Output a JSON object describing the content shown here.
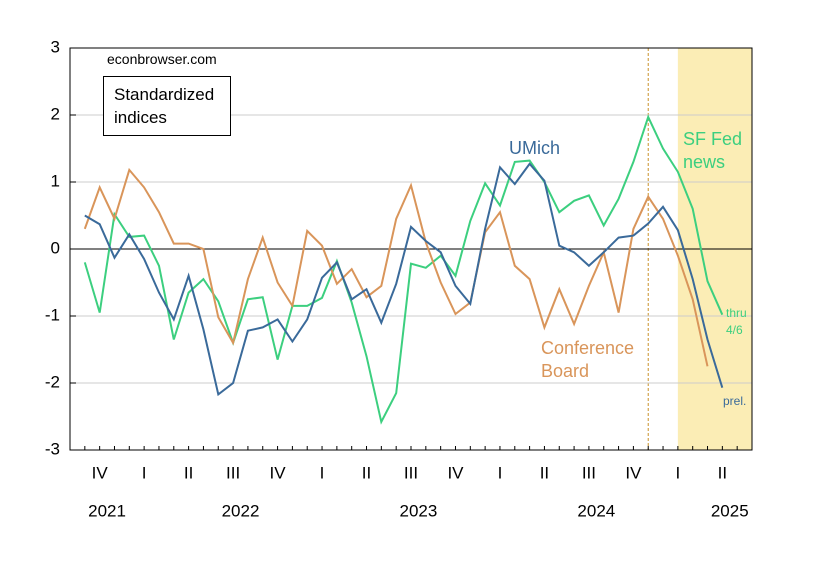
{
  "chart_data": {
    "type": "line",
    "annotations": [
      "econbrowser.com",
      "Standardized indices",
      "thru 4/6",
      "prel."
    ],
    "categories": [
      null,
      null,
      "IV",
      null,
      null,
      "I",
      null,
      null,
      "II",
      null,
      null,
      "III",
      null,
      null,
      "IV",
      null,
      null,
      "I",
      null,
      null,
      "II",
      null,
      null,
      "III",
      null,
      null,
      "IV",
      null,
      null,
      "I",
      null,
      null,
      "II",
      null,
      null,
      "III",
      null,
      null,
      "IV",
      null,
      null,
      "I",
      null,
      null,
      "II",
      null,
      null
    ],
    "year_categories": [
      null,
      null,
      "2021",
      null,
      null,
      null,
      null,
      null,
      null,
      null,
      null,
      "2022",
      null,
      null,
      null,
      null,
      null,
      null,
      null,
      null,
      null,
      null,
      null,
      "2023",
      null,
      null,
      null,
      null,
      null,
      null,
      null,
      null,
      null,
      null,
      null,
      "2024",
      null,
      null,
      null,
      null,
      null,
      null,
      null,
      null,
      "2025",
      null,
      null
    ],
    "series": [
      {
        "name": "SF Fed news",
        "color": "#3ccf7f",
        "values": [
          null,
          -0.2,
          -0.95,
          0.52,
          0.18,
          0.2,
          -0.25,
          -1.35,
          -0.65,
          -0.45,
          -0.78,
          -1.4,
          -0.75,
          -0.72,
          -1.65,
          -0.85,
          -0.85,
          -0.73,
          -0.18,
          -0.8,
          -1.6,
          -2.58,
          -2.15,
          -0.22,
          -0.28,
          -0.1,
          -0.4,
          0.42,
          0.98,
          0.65,
          1.3,
          1.32,
          1.0,
          0.55,
          0.72,
          0.8,
          0.35,
          0.75,
          1.3,
          1.97,
          1.5,
          1.15,
          0.6,
          -0.48,
          -0.98,
          null,
          null
        ]
      },
      {
        "name": "Conference Board",
        "color": "#d9955a",
        "values": [
          null,
          0.3,
          0.92,
          0.45,
          1.18,
          0.92,
          0.55,
          0.08,
          0.08,
          0.0,
          -1.02,
          -1.4,
          -0.45,
          0.17,
          -0.5,
          -0.85,
          0.27,
          0.05,
          -0.52,
          -0.3,
          -0.72,
          -0.55,
          0.45,
          0.95,
          0.1,
          -0.5,
          -0.97,
          -0.8,
          0.25,
          0.55,
          -0.25,
          -0.45,
          -1.17,
          -0.6,
          -1.12,
          -0.55,
          -0.05,
          -0.95,
          0.3,
          0.78,
          0.45,
          -0.1,
          -0.75,
          -1.75,
          null,
          null,
          null
        ]
      },
      {
        "name": "UMich",
        "color": "#3a6a9a",
        "values": [
          null,
          0.5,
          0.37,
          -0.13,
          0.22,
          -0.15,
          -0.65,
          -1.05,
          -0.4,
          -1.2,
          -2.17,
          -2.0,
          -1.22,
          -1.17,
          -1.05,
          -1.38,
          -1.05,
          -0.43,
          -0.2,
          -0.75,
          -0.6,
          -1.1,
          -0.52,
          0.33,
          0.12,
          -0.05,
          -0.55,
          -0.82,
          0.3,
          1.22,
          0.97,
          1.27,
          1.02,
          0.05,
          -0.05,
          -0.25,
          -0.05,
          0.17,
          0.2,
          0.38,
          0.63,
          0.28,
          -0.45,
          -1.35,
          -2.07,
          null,
          null
        ]
      }
    ],
    "ylim": [
      -3,
      3
    ],
    "yticks": [
      -3,
      -2,
      -1,
      0,
      1,
      2,
      3
    ],
    "grid": true
  }
}
